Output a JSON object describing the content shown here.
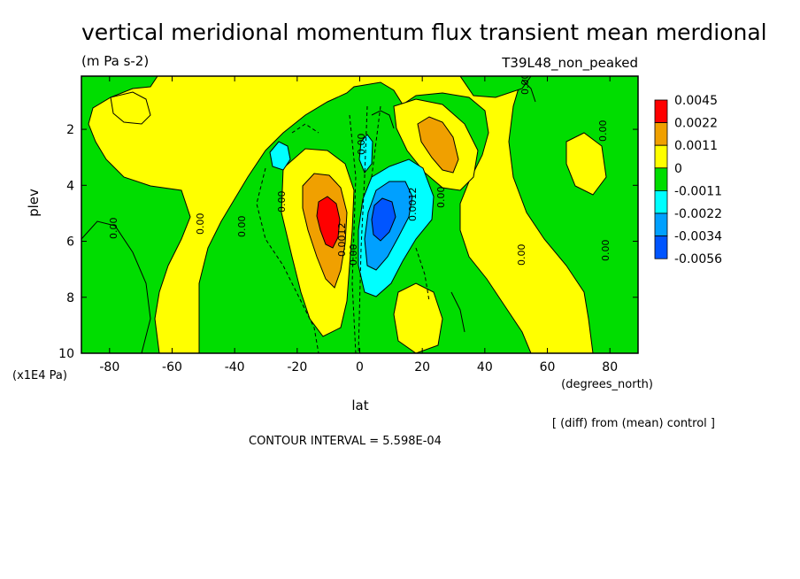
{
  "header": {
    "title": "vertical meridional momentum flux transient mean merdional",
    "units": "(m Pa s-2)",
    "experiment": "T39L48_non_peaked"
  },
  "footer": {
    "diff_note": "[ (diff) from (mean) control ]",
    "contour_interval": "CONTOUR INTERVAL = 5.598E-04"
  },
  "chart_data": {
    "type": "heatmap",
    "title": "vertical meridional momentum flux transient mean merdional",
    "units": "(m Pa s-2)",
    "xlabel": "lat",
    "x_units": "(degrees_north)",
    "ylabel": "plev",
    "y_units": "(x1E4 Pa)",
    "xlim": [
      -89,
      89
    ],
    "ylim": [
      0.1,
      10
    ],
    "y_inverted": true,
    "x_ticks": [
      "-80",
      "-60",
      "-40",
      "-20",
      "0",
      "20",
      "40",
      "60",
      "80"
    ],
    "y_ticks": [
      "2",
      "4",
      "6",
      "8",
      "10"
    ],
    "colorbar": {
      "levels": [
        "0.0045",
        "0.0022",
        "0.0011",
        "0",
        "-0.0011",
        "-0.0022",
        "-0.0034",
        "-0.0056"
      ],
      "colors": [
        "#ff0000",
        "#f0a000",
        "#ffff00",
        "#00dd00",
        "#00ffff",
        "#00a0ff",
        "#0055ff"
      ]
    },
    "contour_labels": [
      "0.00",
      "0.00",
      "0.00",
      "0.00",
      "0.00",
      "0.00",
      "0.00",
      "0.00",
      "0.00",
      "0.00",
      "0.00",
      "0.0012",
      "0.0012"
    ],
    "features": [
      {
        "kind": "positive_max",
        "lat": -10,
        "plev": 5.2,
        "value": 0.0045
      },
      {
        "kind": "negative_min",
        "lat": 7,
        "plev": 5.2,
        "value": -0.0056
      },
      {
        "kind": "positive_secondary",
        "lat": 27,
        "plev": 2.8,
        "value": 0.0022
      },
      {
        "kind": "negative_secondary",
        "lat": -25,
        "plev": 3.0,
        "value": -0.0022
      }
    ]
  }
}
